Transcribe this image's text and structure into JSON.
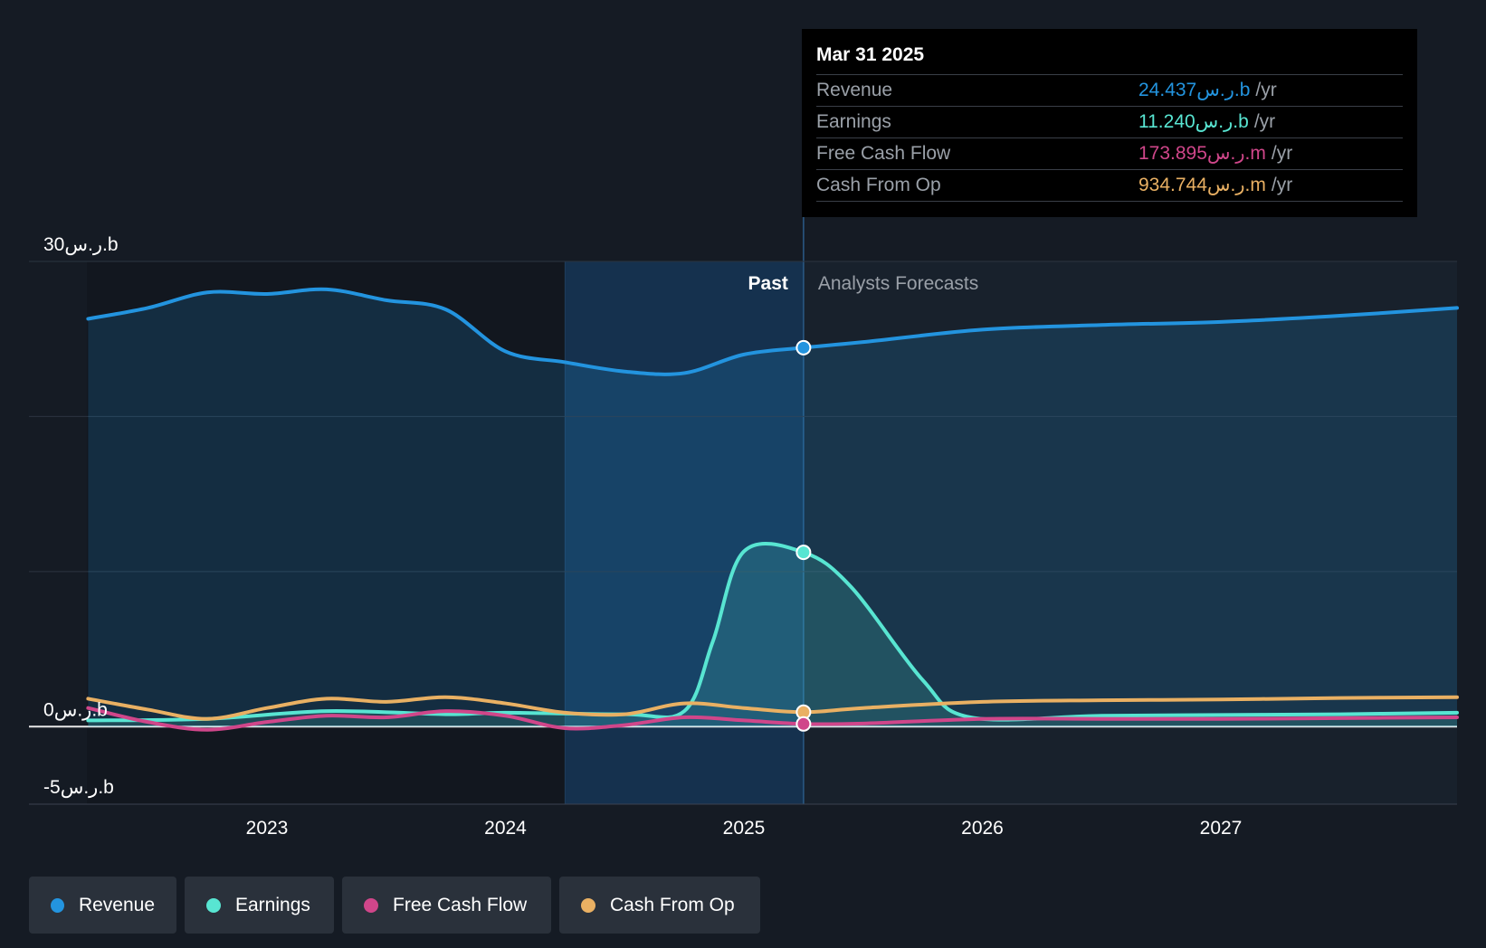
{
  "chart_data": {
    "type": "line",
    "x_ticks": [
      "2023",
      "2024",
      "2025",
      "2026",
      "2027"
    ],
    "y_ticks": [
      {
        "value": 30,
        "label": "30ر.س.b"
      },
      {
        "value": 0,
        "label": "0ر.س.b"
      },
      {
        "value": -5,
        "label": "-5ر.س.b"
      }
    ],
    "ylim": [
      -5,
      30
    ],
    "xlim": [
      "2022-04",
      "2027-12"
    ],
    "sections": {
      "past_label": "Past",
      "forecast_label": "Analysts Forecasts"
    },
    "series": [
      {
        "name": "Revenue",
        "color": "#2394df",
        "x": [
          2022.25,
          2022.5,
          2022.75,
          2023.0,
          2023.25,
          2023.5,
          2023.75,
          2024.0,
          2024.25,
          2024.5,
          2024.75,
          2025.0,
          2025.25,
          2025.5,
          2026.0,
          2026.5,
          2027.0,
          2027.5,
          2028.0
        ],
        "y": [
          26.3,
          27.0,
          28.0,
          27.9,
          28.2,
          27.5,
          26.9,
          24.2,
          23.5,
          22.9,
          22.8,
          24.0,
          24.437,
          24.8,
          25.6,
          25.9,
          26.1,
          26.5,
          27.0
        ]
      },
      {
        "name": "Earnings",
        "color": "#58e5d2",
        "x": [
          2022.25,
          2022.75,
          2023.25,
          2023.75,
          2024.0,
          2024.5,
          2024.75,
          2024.87,
          2025.0,
          2025.25,
          2025.45,
          2025.75,
          2025.95,
          2026.5,
          2027.0,
          2027.5,
          2028.0
        ],
        "y": [
          0.4,
          0.5,
          1.0,
          0.8,
          0.9,
          0.8,
          1.0,
          5.5,
          11.3,
          11.24,
          9.0,
          3.0,
          0.6,
          0.7,
          0.75,
          0.8,
          0.9
        ]
      },
      {
        "name": "Free Cash Flow",
        "color": "#d0468a",
        "x": [
          2022.25,
          2022.5,
          2022.75,
          2023.0,
          2023.25,
          2023.5,
          2023.75,
          2024.0,
          2024.25,
          2024.5,
          2024.75,
          2025.0,
          2025.25,
          2025.5,
          2026.0,
          2026.5,
          2027.0,
          2027.5,
          2028.0
        ],
        "y": [
          1.2,
          0.3,
          -0.2,
          0.3,
          0.7,
          0.6,
          1.0,
          0.7,
          -0.1,
          0.1,
          0.6,
          0.4,
          0.174,
          0.2,
          0.5,
          0.5,
          0.5,
          0.55,
          0.6
        ]
      },
      {
        "name": "Cash From Op",
        "color": "#e9b063",
        "x": [
          2022.25,
          2022.5,
          2022.75,
          2023.0,
          2023.25,
          2023.5,
          2023.75,
          2024.0,
          2024.25,
          2024.5,
          2024.75,
          2025.0,
          2025.25,
          2025.5,
          2026.0,
          2026.5,
          2027.0,
          2027.5,
          2028.0
        ],
        "y": [
          1.8,
          1.1,
          0.5,
          1.2,
          1.8,
          1.6,
          1.9,
          1.5,
          0.9,
          0.8,
          1.5,
          1.2,
          0.935,
          1.2,
          1.6,
          1.7,
          1.75,
          1.85,
          1.9
        ]
      }
    ],
    "tooltip": {
      "date": "Mar 31 2025",
      "x": 2025.25,
      "rows": [
        {
          "label": "Revenue",
          "value": "24.437ر.س.b",
          "unit": "/yr",
          "color": "#2394df"
        },
        {
          "label": "Earnings",
          "value": "11.240ر.س.b",
          "unit": "/yr",
          "color": "#58e5d2"
        },
        {
          "label": "Free Cash Flow",
          "value": "173.895ر.س.m",
          "unit": "/yr",
          "color": "#d0468a"
        },
        {
          "label": "Cash From Op",
          "value": "934.744ر.س.m",
          "unit": "/yr",
          "color": "#e9b063"
        }
      ]
    },
    "legend": [
      {
        "label": "Revenue",
        "color": "#2394df"
      },
      {
        "label": "Earnings",
        "color": "#58e5d2"
      },
      {
        "label": "Free Cash Flow",
        "color": "#d0468a"
      },
      {
        "label": "Cash From Op",
        "color": "#e9b063"
      }
    ]
  }
}
